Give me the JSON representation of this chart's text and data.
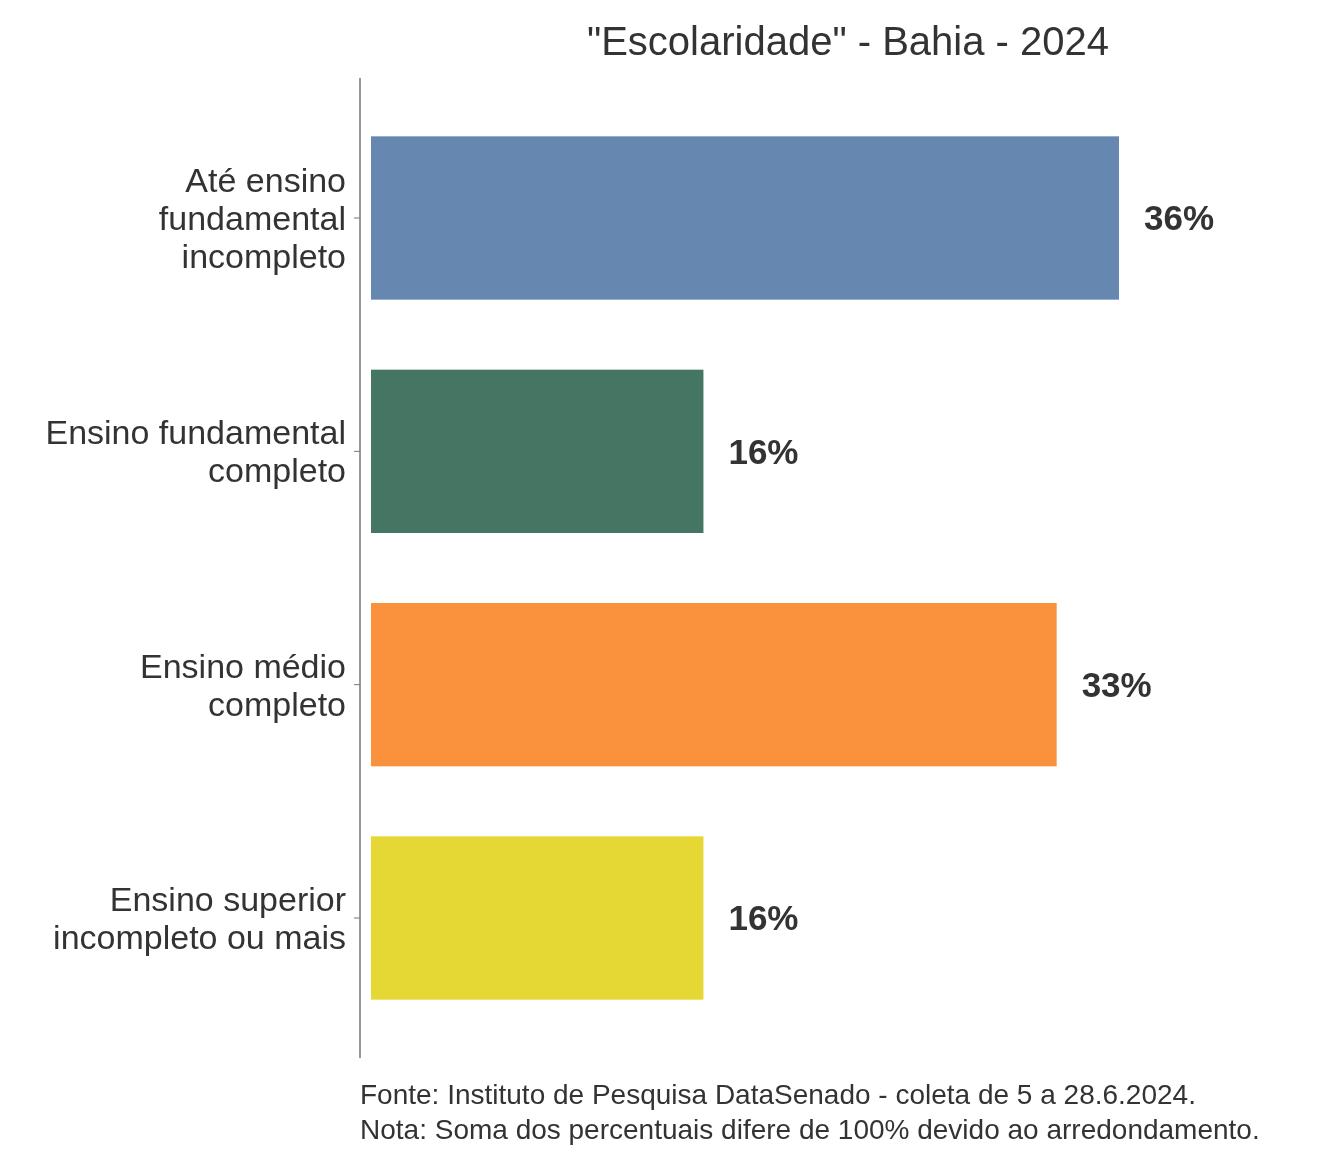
{
  "chart_data": {
    "type": "bar",
    "orientation": "horizontal",
    "title": "\"Escolaridade\" - Bahia - 2024",
    "categories": [
      "Até ensino fundamental incompleto",
      "Ensino fundamental completo",
      "Ensino médio completo",
      "Ensino superior incompleto ou mais"
    ],
    "values": [
      36,
      16,
      33,
      16
    ],
    "colors": [
      "#6688b0",
      "#457563",
      "#f9913d",
      "#e5d835"
    ],
    "value_labels": [
      "36%",
      "16%",
      "33%",
      "16%"
    ],
    "annotations": [
      "Fonte: Instituto de Pesquisa DataSenado - coleta de 5 a 28.6.2024.",
      "Nota: Soma dos percentuais difere de 100% devido ao arredondamento."
    ]
  }
}
